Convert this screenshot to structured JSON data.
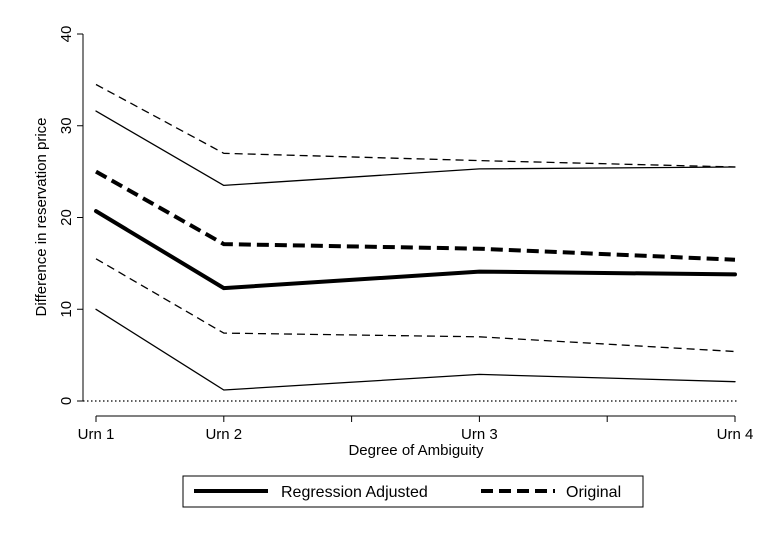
{
  "chart_data": {
    "type": "line",
    "xlabel": "Degree of Ambiguity",
    "ylabel": "Difference in reservation price",
    "categories": [
      "Urn 1",
      "Urn 2",
      "Urn 3",
      "Urn 4"
    ],
    "x": [
      1,
      2,
      4,
      6
    ],
    "xlim": [
      1,
      6
    ],
    "ylim": [
      0,
      40
    ],
    "yticks": [
      0,
      10,
      20,
      30,
      40
    ],
    "ytick_labels": [
      "0",
      "10",
      "20",
      "30",
      "40"
    ],
    "xticks_major": [
      1,
      2,
      4,
      6
    ],
    "xticks_minor": [
      3,
      5
    ],
    "reference_line": {
      "y": 0,
      "style": "dotted"
    },
    "grid": false,
    "legend_position": "bottom",
    "series": [
      {
        "name": "Regression Adjusted",
        "style": "solid",
        "weight": "thick",
        "values": [
          20.7,
          12.3,
          14.1,
          13.8
        ]
      },
      {
        "name": "",
        "style": "solid",
        "weight": "thin",
        "values": [
          31.6,
          23.5,
          25.3,
          25.5
        ]
      },
      {
        "name": "",
        "style": "solid",
        "weight": "thin",
        "values": [
          10.0,
          1.2,
          2.9,
          2.1
        ]
      },
      {
        "name": "Original",
        "style": "dashed",
        "weight": "thick",
        "values": [
          25.0,
          17.1,
          16.6,
          15.4
        ]
      },
      {
        "name": "",
        "style": "dashed",
        "weight": "thin",
        "values": [
          34.5,
          27.0,
          26.2,
          25.5
        ]
      },
      {
        "name": "",
        "style": "dashed",
        "weight": "thin",
        "values": [
          15.5,
          7.4,
          7.0,
          5.4
        ]
      }
    ],
    "colors": {
      "line": "#000000",
      "background": "#ffffff"
    }
  }
}
